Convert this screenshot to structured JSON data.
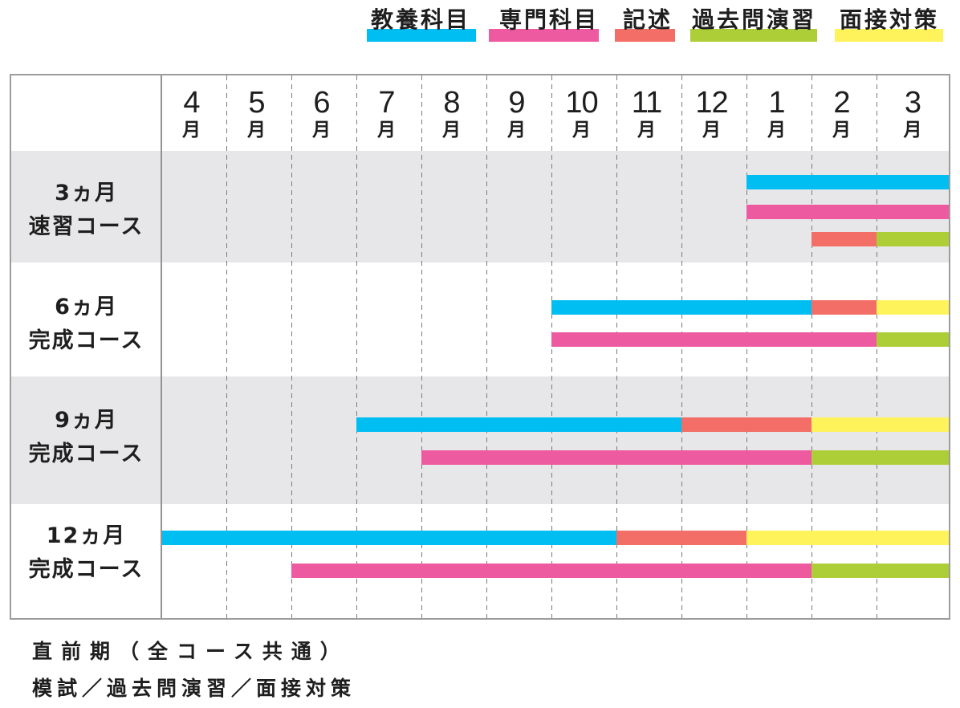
{
  "chart_data": {
    "type": "bar",
    "orientation": "horizontal",
    "grid": true,
    "legend": {
      "position": "top-right",
      "items": [
        {
          "name": "教養科目",
          "color": "#00BEF2"
        },
        {
          "name": "専門科目",
          "color": "#EE5A9F"
        },
        {
          "name": "記述",
          "color": "#F26E66"
        },
        {
          "name": "過去問演習",
          "color": "#AECE38"
        },
        {
          "name": "面接対策",
          "color": "#FFF35C"
        }
      ]
    },
    "x_ticks": [
      "4月",
      "5月",
      "6月",
      "7月",
      "8月",
      "9月",
      "10月",
      "11月",
      "12月",
      "1月",
      "2月",
      "3月"
    ],
    "rows": [
      {
        "label": [
          "3ヵ月",
          "速習コース"
        ],
        "tracks": [
          [
            {
              "category": "教養科目",
              "start": "1月",
              "end": "3月"
            }
          ],
          [
            {
              "category": "専門科目",
              "start": "1月",
              "end": "3月"
            }
          ],
          [
            {
              "category": "記述",
              "start": "2月",
              "end": "2月"
            },
            {
              "category": "過去問演習",
              "start": "3月",
              "end": "3月"
            }
          ]
        ]
      },
      {
        "label": [
          "6ヵ月",
          "完成コース"
        ],
        "tracks": [
          [
            {
              "category": "教養科目",
              "start": "10月",
              "end": "1月"
            },
            {
              "category": "記述",
              "start": "2月",
              "end": "2月"
            },
            {
              "category": "面接対策",
              "start": "3月",
              "end": "3月"
            }
          ],
          [
            {
              "category": "専門科目",
              "start": "10月",
              "end": "2月"
            },
            {
              "category": "過去問演習",
              "start": "3月",
              "end": "3月"
            }
          ]
        ]
      },
      {
        "label": [
          "9ヵ月",
          "完成コース"
        ],
        "tracks": [
          [
            {
              "category": "教養科目",
              "start": "7月",
              "end": "11月"
            },
            {
              "category": "記述",
              "start": "12月",
              "end": "1月"
            },
            {
              "category": "面接対策",
              "start": "2月",
              "end": "3月"
            }
          ],
          [
            {
              "category": "専門科目",
              "start": "8月",
              "end": "1月"
            },
            {
              "category": "過去問演習",
              "start": "2月",
              "end": "3月"
            }
          ]
        ]
      },
      {
        "label": [
          "12ヵ月",
          "完成コース"
        ],
        "tracks": [
          [
            {
              "category": "教養科目",
              "start": "4月",
              "end": "10月"
            },
            {
              "category": "記述",
              "start": "11月",
              "end": "12月"
            },
            {
              "category": "面接対策",
              "start": "1月",
              "end": "3月"
            }
          ],
          [
            {
              "category": "専門科目",
              "start": "6月",
              "end": "1月"
            },
            {
              "category": "過去問演習",
              "start": "2月",
              "end": "3月"
            }
          ]
        ]
      }
    ],
    "note": [
      "直前期（全コース共通）",
      "模試／過去問演習／面接対策"
    ]
  }
}
